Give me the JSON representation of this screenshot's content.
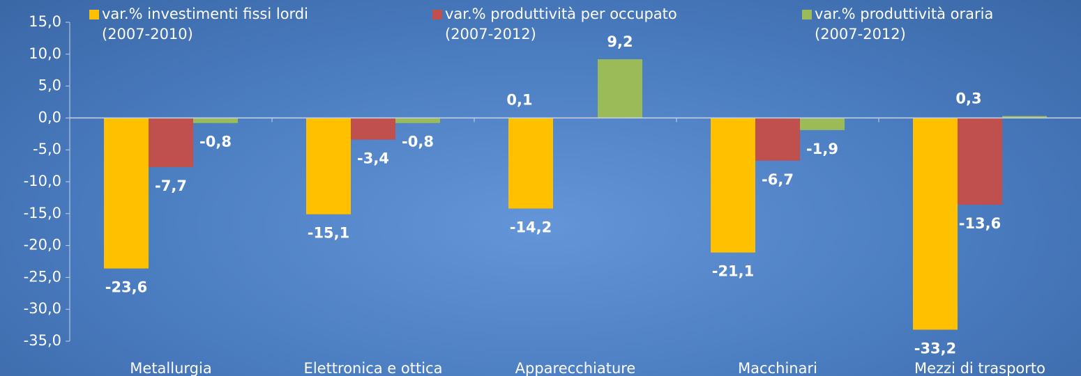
{
  "chart_data": {
    "type": "bar",
    "categories": [
      "Metallurgia",
      "Elettronica e ottica",
      "Apparecchiature",
      "Macchinari",
      "Mezzi di trasporto"
    ],
    "series": [
      {
        "name": "var.% investimenti fissi lordi\n(2007-2010)",
        "color": "#ffc000",
        "values": [
          -23.6,
          -15.1,
          -14.2,
          -21.1,
          -33.2
        ],
        "value_labels": [
          "-23,6",
          "-15,1",
          "-14,2",
          "-21,1",
          "-33,2"
        ]
      },
      {
        "name": "var.% produttività per occupato\n(2007-2012)",
        "color": "#c0504d",
        "values": [
          -7.7,
          -3.4,
          0.1,
          -6.7,
          -13.6
        ],
        "value_labels": [
          "-7,7",
          "-3,4",
          "0,1",
          "-6,7",
          "-13,6"
        ]
      },
      {
        "name": "var.% produttività oraria\n(2007-2012)",
        "color": "#9bbb59",
        "values": [
          -0.8,
          -0.8,
          9.2,
          -1.9,
          0.3
        ],
        "value_labels": [
          "-0,8",
          "-0,8",
          "9,2",
          "-1,9",
          "0,3"
        ]
      }
    ],
    "ylim": [
      -35,
      15
    ],
    "yticks": [
      {
        "value": 15,
        "label": "15,0"
      },
      {
        "value": 10,
        "label": "10,0"
      },
      {
        "value": 5,
        "label": "5,0"
      },
      {
        "value": 0,
        "label": "0,0"
      },
      {
        "value": -5,
        "label": "-5,0"
      },
      {
        "value": -10,
        "label": "-10,0"
      },
      {
        "value": -15,
        "label": "-15,0"
      },
      {
        "value": -20,
        "label": "-20,0"
      },
      {
        "value": -25,
        "label": "-25,0"
      },
      {
        "value": -30,
        "label": "-30,0"
      },
      {
        "value": -35,
        "label": "-35,0"
      }
    ],
    "legend": "top"
  }
}
